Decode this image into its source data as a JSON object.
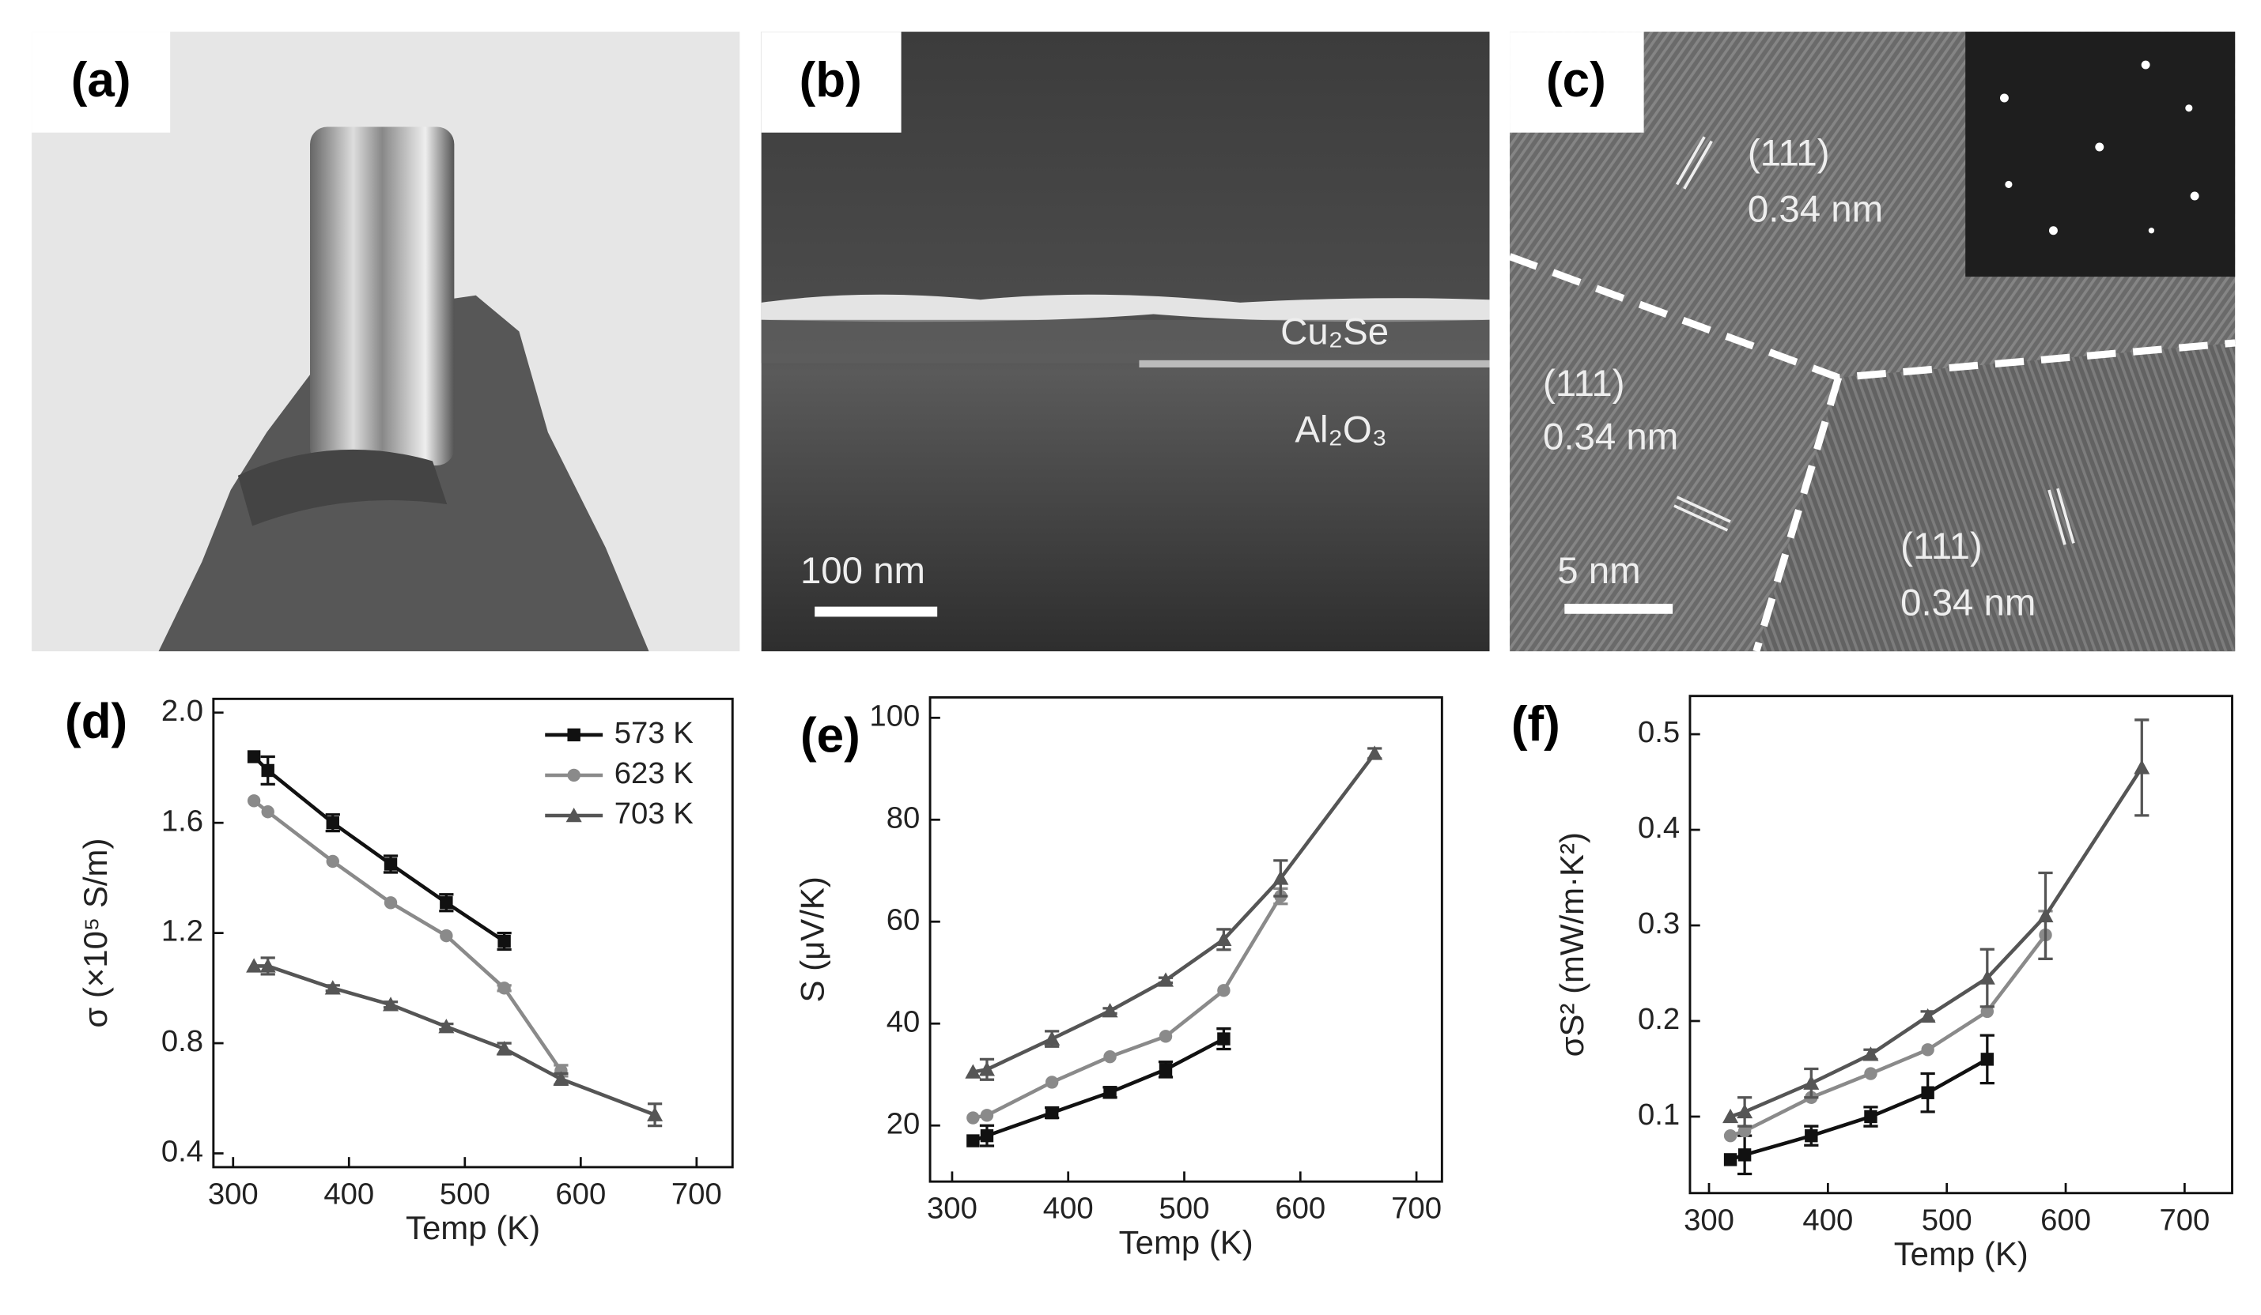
{
  "panels": [
    {
      "label": "(a)"
    },
    {
      "label": "(b)",
      "texts": [
        "Cu₂Se",
        "Al₂O₃",
        "100 nm"
      ]
    },
    {
      "label": "(c)",
      "texts": [
        "(111)",
        "0.34 nm",
        "(111)",
        "0.34 nm",
        "(111)",
        "0.34 nm",
        "5 nm"
      ]
    },
    {
      "label": "(d)"
    },
    {
      "label": "(e)"
    },
    {
      "label": "(f)"
    }
  ],
  "chart_data": [
    {
      "type": "line",
      "x_label": "Temp (K)",
      "y_label": "σ (×10⁵ S/m)",
      "xlim": [
        283,
        731
      ],
      "ylim": [
        0.35,
        2.05
      ],
      "xticks": [
        300,
        400,
        500,
        600,
        700
      ],
      "yticks": [
        0.4,
        0.8,
        1.2,
        1.6,
        {
          "value": 2,
          "label": "2.0"
        }
      ],
      "legend": "upper right",
      "series": [
        {
          "name": "573 K",
          "color": "#111111",
          "marker": "square",
          "x": [
            318,
            330,
            386,
            436,
            484,
            534
          ],
          "values": [
            1.84,
            1.79,
            1.6,
            1.45,
            1.31,
            1.17
          ],
          "errors": [
            null,
            0.05,
            0.03,
            0.03,
            0.03,
            0.03
          ]
        },
        {
          "name": "623 K",
          "color": "#8a8a8a",
          "marker": "circle",
          "x": [
            318,
            330,
            386,
            436,
            484,
            534,
            583
          ],
          "values": [
            1.68,
            1.64,
            1.46,
            1.31,
            1.19,
            1.0,
            0.7
          ],
          "errors": [
            null,
            null,
            null,
            null,
            null,
            0.01,
            0.02
          ]
        },
        {
          "name": "703 K",
          "color": "#555555",
          "marker": "triangle",
          "x": [
            318,
            330,
            386,
            436,
            484,
            534,
            583,
            664
          ],
          "values": [
            1.08,
            1.08,
            1.0,
            0.94,
            0.86,
            0.78,
            0.67,
            0.54
          ],
          "errors": [
            null,
            0.03,
            0.01,
            0.01,
            0.01,
            0.02,
            0.02,
            0.04
          ]
        }
      ]
    },
    {
      "type": "line",
      "x_label": "Temp (K)",
      "y_label": "S (μV/K)",
      "xlim": [
        281,
        722
      ],
      "ylim": [
        9,
        104
      ],
      "xticks": [
        300,
        400,
        500,
        600,
        700
      ],
      "yticks": [
        20,
        40,
        60,
        80,
        100
      ],
      "series": [
        {
          "color": "#111111",
          "marker": "square",
          "x": [
            318,
            330,
            386,
            436,
            484,
            534
          ],
          "values": [
            17,
            18,
            22.5,
            26.5,
            31,
            37
          ],
          "errors": [
            null,
            2,
            1,
            1,
            1.5,
            2
          ]
        },
        {
          "color": "#8a8a8a",
          "marker": "circle",
          "x": [
            318,
            330,
            386,
            436,
            484,
            534,
            583
          ],
          "values": [
            21.5,
            22,
            28.5,
            33.5,
            37.5,
            46.5,
            65
          ],
          "errors": [
            null,
            null,
            null,
            null,
            null,
            null,
            1.5
          ]
        },
        {
          "color": "#555555",
          "marker": "triangle",
          "x": [
            318,
            330,
            386,
            436,
            484,
            534,
            583,
            664
          ],
          "values": [
            30.5,
            31,
            37,
            42.5,
            48.5,
            56.5,
            68.5,
            93
          ],
          "errors": [
            null,
            2,
            1.5,
            0.5,
            0.5,
            2,
            3.5,
            1
          ]
        }
      ]
    },
    {
      "type": "line",
      "x_label": "Temp (K)",
      "y_label": "σS² (mW/m·K²)",
      "xlim": [
        284,
        740
      ],
      "ylim": [
        0.02,
        0.54
      ],
      "xticks": [
        300,
        400,
        500,
        600,
        700
      ],
      "yticks": [
        0.1,
        0.2,
        0.3,
        0.4,
        0.5
      ],
      "series": [
        {
          "color": "#111111",
          "marker": "square",
          "x": [
            318,
            330,
            386,
            436,
            484,
            534
          ],
          "values": [
            0.055,
            0.06,
            0.08,
            0.1,
            0.125,
            0.16
          ],
          "errors": [
            null,
            0.02,
            0.01,
            0.01,
            0.02,
            0.025
          ]
        },
        {
          "color": "#8a8a8a",
          "marker": "circle",
          "x": [
            318,
            330,
            386,
            436,
            484,
            534,
            583
          ],
          "values": [
            0.08,
            0.085,
            0.12,
            0.145,
            0.17,
            0.21,
            0.29
          ],
          "errors": [
            null,
            null,
            null,
            null,
            null,
            null,
            0.025
          ]
        },
        {
          "color": "#555555",
          "marker": "triangle",
          "x": [
            318,
            330,
            386,
            436,
            484,
            534,
            583,
            664
          ],
          "values": [
            0.1,
            0.105,
            0.135,
            0.165,
            0.205,
            0.245,
            0.31,
            0.465
          ],
          "errors": [
            null,
            0.015,
            0.015,
            0.005,
            0.005,
            0.03,
            0.045,
            0.05
          ]
        }
      ]
    }
  ]
}
